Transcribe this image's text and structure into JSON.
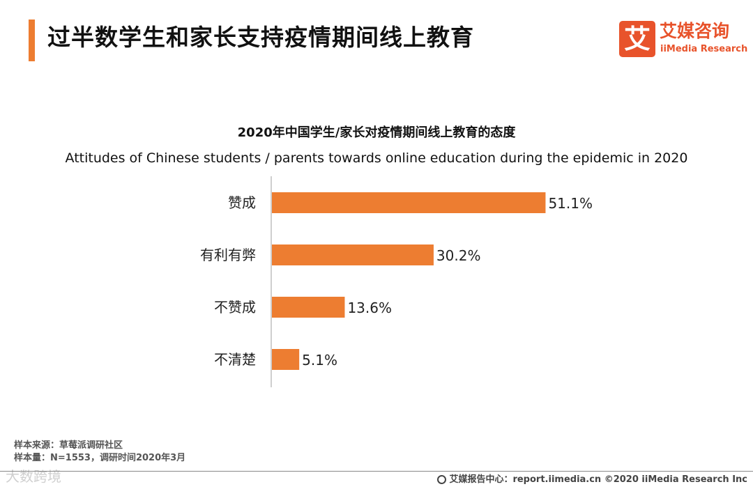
{
  "header": {
    "title": "过半数学生和家长支持疫情期间线上教育"
  },
  "logo": {
    "mark": "艾",
    "cn": "艾媒咨询",
    "en": "iiMedia Research",
    "color": "#e8532b"
  },
  "chart_data": {
    "type": "bar",
    "orientation": "horizontal",
    "title": "2020年中国学生/家长对疫情期间线上教育的态度",
    "subtitle": "Attitudes of Chinese students / parents towards online education during the epidemic in 2020",
    "categories": [
      "赞成",
      "有利有弊",
      "不赞成",
      "不清楚"
    ],
    "values": [
      51.1,
      30.2,
      13.6,
      5.1
    ],
    "value_labels": [
      "51.1%",
      "30.2%",
      "13.6%",
      "5.1%"
    ],
    "unit": "%",
    "bar_color": "#ed7d31",
    "grid": false,
    "legend": "none"
  },
  "source": {
    "line1": "样本来源：草莓派调研社区",
    "line2": "样本量：N=1553，调研时间2020年3月"
  },
  "watermark": "大数跨境",
  "footer": {
    "text": "艾媒报告中心：report.iimedia.cn  ©2020  iiMedia Research  Inc"
  }
}
